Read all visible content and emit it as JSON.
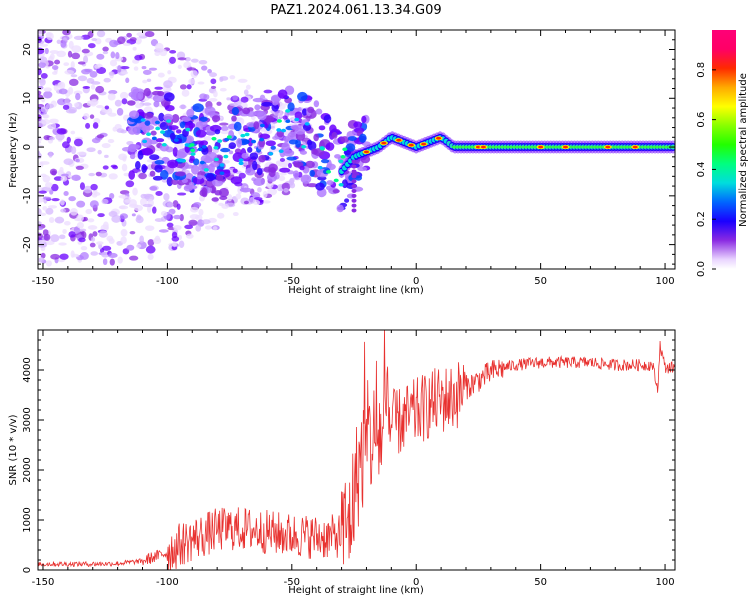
{
  "title": "PAZ1.2024.061.13.34.G09",
  "colors": {
    "snr_line": "#e8312f",
    "axis": "#000000",
    "background": "#ffffff"
  },
  "chart_data": [
    {
      "type": "heatmap",
      "title": "PAZ1.2024.061.13.34.G09",
      "xlabel": "Height of straight line (km)",
      "ylabel": "Frequency (Hz)",
      "xlim": [
        -152,
        104
      ],
      "ylim": [
        -25,
        24
      ],
      "xticks": [
        -150,
        -100,
        -50,
        0,
        50,
        100
      ],
      "yticks": [
        20,
        10,
        0,
        -10,
        -20
      ],
      "colorbar": {
        "label": "Normalized spectral amplitude",
        "ticks": [
          "0.0",
          "0.2",
          "0.4",
          "0.6",
          "0.8"
        ],
        "tick_values": [
          0.0,
          0.2,
          0.4,
          0.6,
          0.8
        ],
        "range": [
          0,
          0.96
        ],
        "colormap": "gist_ncar"
      },
      "spectral_ridge": {
        "x": [
          -110,
          -100,
          -90,
          -80,
          -70,
          -60,
          -50,
          -45,
          -40,
          -35,
          -30,
          -25,
          -20,
          -15,
          -10,
          -5,
          0,
          5,
          10,
          15,
          25,
          50,
          75,
          100
        ],
        "center_freq_hz": [
          3,
          2,
          0,
          -2,
          0,
          1,
          4,
          2,
          0,
          -3,
          -5,
          -2,
          -1,
          0,
          2,
          1,
          0,
          1,
          2,
          0,
          0,
          0,
          0,
          0
        ]
      }
    },
    {
      "type": "line",
      "xlabel": "Height of straight line (km)",
      "ylabel": "SNR (10 * v/v)",
      "xlim": [
        -152,
        104
      ],
      "ylim": [
        0,
        4800
      ],
      "xticks": [
        -150,
        -100,
        -50,
        0,
        50,
        100
      ],
      "yticks": [
        0,
        1000,
        2000,
        3000,
        4000
      ],
      "series": [
        {
          "x": [
            -152,
            -140,
            -130,
            -120,
            -110,
            -100,
            -95,
            -90,
            -85,
            -80,
            -75,
            -70,
            -65,
            -60,
            -55,
            -50,
            -45,
            -40,
            -35,
            -30,
            -27,
            -25,
            -23,
            -20,
            -18,
            -15,
            -10,
            -5,
            0,
            5,
            10,
            15,
            20,
            25,
            30,
            35,
            40,
            50,
            60,
            70,
            80,
            90,
            95,
            97,
            98,
            100,
            104
          ],
          "values": [
            120,
            120,
            120,
            130,
            180,
            350,
            500,
            620,
            700,
            800,
            830,
            820,
            800,
            760,
            720,
            700,
            680,
            660,
            650,
            700,
            900,
            1500,
            2100,
            2500,
            2600,
            2700,
            2900,
            3000,
            3150,
            3300,
            3400,
            3450,
            3650,
            3800,
            3950,
            4050,
            4100,
            4150,
            4150,
            4150,
            4100,
            4100,
            4100,
            3600,
            4500,
            4050,
            4050
          ]
        }
      ]
    }
  ]
}
